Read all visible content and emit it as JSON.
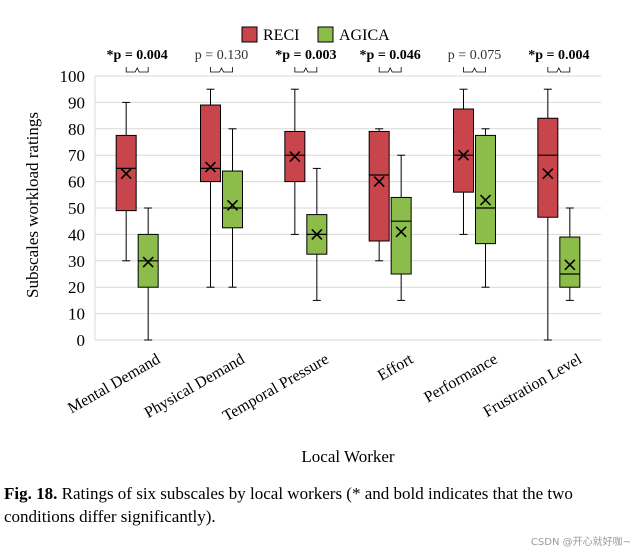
{
  "chart_data": {
    "type": "box",
    "title": "",
    "ylabel": "Subscales workload ratings",
    "xlabel": "Local Worker",
    "ylim": [
      0,
      100
    ],
    "yticks": [
      0,
      10,
      20,
      30,
      40,
      50,
      60,
      70,
      80,
      90,
      100
    ],
    "grid": true,
    "legend": {
      "position": "top-center",
      "entries": [
        "RECI",
        "AGICA"
      ]
    },
    "series": [
      {
        "name": "RECI",
        "color": "#c8454b"
      },
      {
        "name": "AGICA",
        "color": "#8cbc4a"
      }
    ],
    "categories": [
      "Mental Demand",
      "Physical Demand",
      "Temporal Pressure",
      "Effort",
      "Performance",
      "Frustration Level"
    ],
    "annotations": [
      {
        "text": "*p = 0.004",
        "bold": true
      },
      {
        "text": "p = 0.130",
        "bold": false
      },
      {
        "text": "*p = 0.003",
        "bold": true
      },
      {
        "text": "*p = 0.046",
        "bold": true
      },
      {
        "text": "p = 0.075",
        "bold": false
      },
      {
        "text": "*p = 0.004",
        "bold": true
      }
    ],
    "boxes": [
      [
        {
          "whisker_low": 30,
          "q1": 49,
          "median": 65,
          "q3": 77.5,
          "whisker_high": 90,
          "mean": 63
        },
        {
          "whisker_low": 0,
          "q1": 20,
          "median": 30,
          "q3": 40,
          "whisker_high": 50,
          "mean": 29.5
        }
      ],
      [
        {
          "whisker_low": 20,
          "q1": 60,
          "median": 65,
          "q3": 89,
          "whisker_high": 95,
          "mean": 65.5
        },
        {
          "whisker_low": 20,
          "q1": 42.5,
          "median": 50,
          "q3": 64,
          "whisker_high": 80,
          "mean": 51
        }
      ],
      [
        {
          "whisker_low": 40,
          "q1": 60,
          "median": 70,
          "q3": 79,
          "whisker_high": 95,
          "mean": 69.5
        },
        {
          "whisker_low": 15,
          "q1": 32.5,
          "median": 40,
          "q3": 47.5,
          "whisker_high": 65,
          "mean": 40
        }
      ],
      [
        {
          "whisker_low": 30,
          "q1": 37.5,
          "median": 62.5,
          "q3": 79,
          "whisker_high": 80,
          "mean": 60
        },
        {
          "whisker_low": 15,
          "q1": 25,
          "median": 45,
          "q3": 54,
          "whisker_high": 70,
          "mean": 41
        }
      ],
      [
        {
          "whisker_low": 40,
          "q1": 56,
          "median": 70,
          "q3": 87.5,
          "whisker_high": 95,
          "mean": 70
        },
        {
          "whisker_low": 20,
          "q1": 36.5,
          "median": 50,
          "q3": 77.5,
          "whisker_high": 80,
          "mean": 53
        }
      ],
      [
        {
          "whisker_low": 0,
          "q1": 46.5,
          "median": 70,
          "q3": 84,
          "whisker_high": 95,
          "mean": 63
        },
        {
          "whisker_low": 15,
          "q1": 20,
          "median": 25,
          "q3": 39,
          "whisker_high": 50,
          "mean": 28.5
        }
      ]
    ]
  },
  "caption": {
    "label": "Fig. 18.",
    "text": "Ratings of six subscales by local workers (* and bold indicates that the two conditions differ significantly)."
  },
  "watermark": "CSDN @开心就好咖~"
}
